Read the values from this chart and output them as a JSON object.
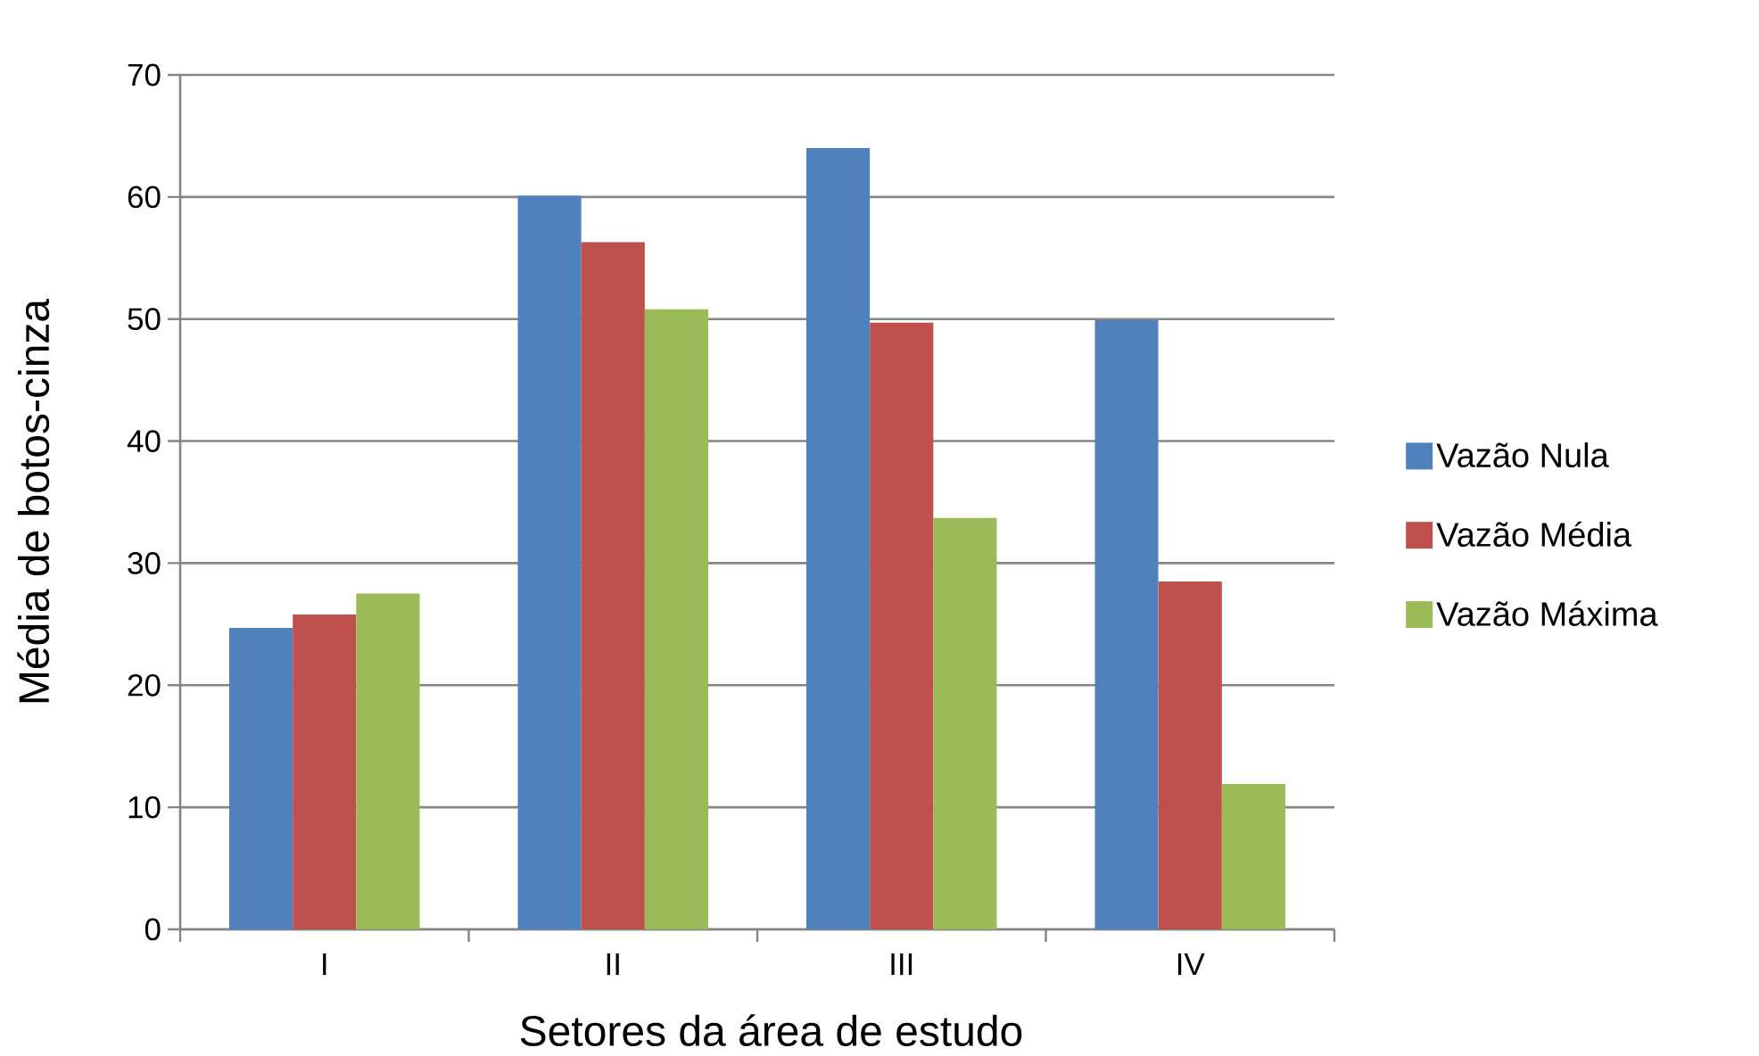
{
  "chart_data": {
    "type": "bar",
    "xlabel": "Setores da área de estudo",
    "ylabel": "Média de botos-cinza",
    "categories": [
      "I",
      "II",
      "III",
      "IV"
    ],
    "series": [
      {
        "name": "Vazão Nula",
        "color": "#4f81bd",
        "values": [
          24.7,
          60.1,
          64.0,
          49.9
        ]
      },
      {
        "name": "Vazão Média",
        "color": "#c0504d",
        "values": [
          25.8,
          56.3,
          49.7,
          28.5
        ]
      },
      {
        "name": "Vazão Máxima",
        "color": "#9bbb59",
        "values": [
          27.5,
          50.8,
          33.7,
          11.9
        ]
      }
    ],
    "ylim": [
      0,
      70
    ],
    "yticks": [
      0,
      10,
      20,
      30,
      40,
      50,
      60,
      70
    ],
    "grid": "y",
    "legend": "right"
  }
}
